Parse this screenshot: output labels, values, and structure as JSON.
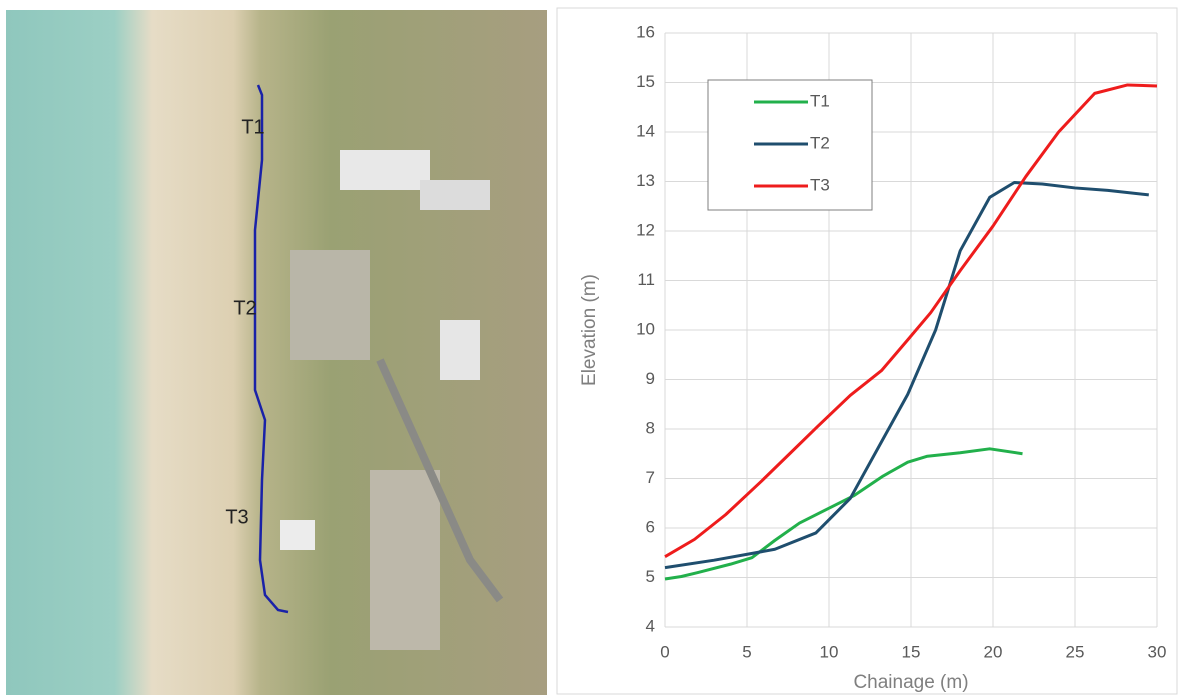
{
  "map": {
    "labels": [
      "T1",
      "T2",
      "T3"
    ]
  },
  "chart_data": {
    "type": "line",
    "x_label": "Chainage (m)",
    "y_label": "Elevation (m)",
    "xlim": [
      0,
      30
    ],
    "xticks": [
      0,
      5,
      10,
      15,
      20,
      25,
      30
    ],
    "ylim": [
      4,
      16
    ],
    "yticks": [
      4,
      5,
      6,
      7,
      8,
      9,
      10,
      11,
      12,
      13,
      14,
      15,
      16
    ],
    "grid": true,
    "legend": "upper left",
    "series": [
      {
        "name": "T1",
        "color": "#22b04b",
        "x": [
          0,
          1,
          2,
          4,
          5.3,
          6.7,
          8.2,
          10,
          11.5,
          13.3,
          14.8,
          16,
          18,
          19.8,
          21.8
        ],
        "values": [
          4.97,
          5.02,
          5.1,
          5.27,
          5.4,
          5.75,
          6.1,
          6.4,
          6.65,
          7.05,
          7.33,
          7.45,
          7.52,
          7.6,
          7.5
        ]
      },
      {
        "name": "T2",
        "color": "#1f4e6e",
        "x": [
          0,
          3,
          6.7,
          9.2,
          11.3,
          13.3,
          14.8,
          16.5,
          18,
          19.8,
          21.3,
          23,
          25,
          27,
          29.5
        ],
        "values": [
          5.2,
          5.35,
          5.57,
          5.9,
          6.6,
          7.8,
          8.7,
          10,
          11.6,
          12.68,
          12.98,
          12.95,
          12.87,
          12.82,
          12.73
        ]
      },
      {
        "name": "T3",
        "color": "#ee1c1c",
        "x": [
          0,
          1.8,
          3.7,
          5.8,
          7.6,
          9.3,
          11.3,
          13.2,
          14.8,
          16.2,
          18,
          20,
          22,
          24,
          26.2,
          28.2,
          30
        ],
        "values": [
          5.42,
          5.77,
          6.27,
          6.92,
          7.5,
          8.05,
          8.68,
          9.18,
          9.8,
          10.35,
          11.2,
          12.1,
          13.1,
          14,
          14.78,
          14.95,
          14.93
        ]
      }
    ]
  }
}
